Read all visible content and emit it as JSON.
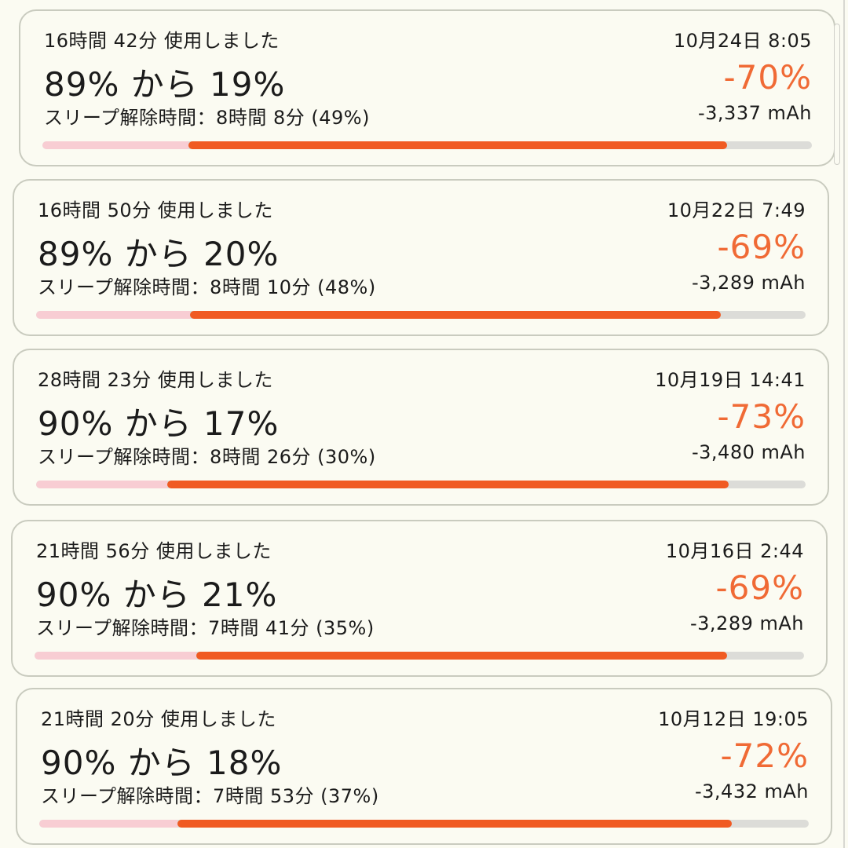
{
  "colors": {
    "background": "#fbfbf2",
    "accent_orange": "#f05a22",
    "delta_text": "#f06a35",
    "bar_pink": "#f8cdd3",
    "bar_track": "#dcdcd8",
    "card_border": "#c9cbbf"
  },
  "cards": [
    {
      "usage": "16時間 42分 使用しました",
      "date": "10月24日 8:05",
      "range": "89% から 19%",
      "delta": "-70%",
      "awake": "スリープ解除時間：8時間 8分 (49%)",
      "mah": "-3,337 mAh",
      "start_level": 0.89,
      "end_level": 0.19
    },
    {
      "usage": "16時間 50分 使用しました",
      "date": "10月22日 7:49",
      "range": "89% から 20%",
      "delta": "-69%",
      "awake": "スリープ解除時間：8時間 10分 (48%)",
      "mah": "-3,289 mAh",
      "start_level": 0.89,
      "end_level": 0.2
    },
    {
      "usage": "28時間 23分 使用しました",
      "date": "10月19日 14:41",
      "range": "90% から 17%",
      "delta": "-73%",
      "awake": "スリープ解除時間：8時間 26分 (30%)",
      "mah": "-3,480 mAh",
      "start_level": 0.9,
      "end_level": 0.17
    },
    {
      "usage": "21時間 56分 使用しました",
      "date": "10月16日 2:44",
      "range": "90% から 21%",
      "delta": "-69%",
      "awake": "スリープ解除時間：7時間 41分 (35%)",
      "mah": "-3,289 mAh",
      "start_level": 0.9,
      "end_level": 0.21
    },
    {
      "usage": "21時間 20分 使用しました",
      "date": "10月12日 19:05",
      "range": "90% から 18%",
      "delta": "-72%",
      "awake": "スリープ解除時間：7時間 53分 (37%)",
      "mah": "-3,432 mAh",
      "start_level": 0.9,
      "end_level": 0.18
    }
  ]
}
